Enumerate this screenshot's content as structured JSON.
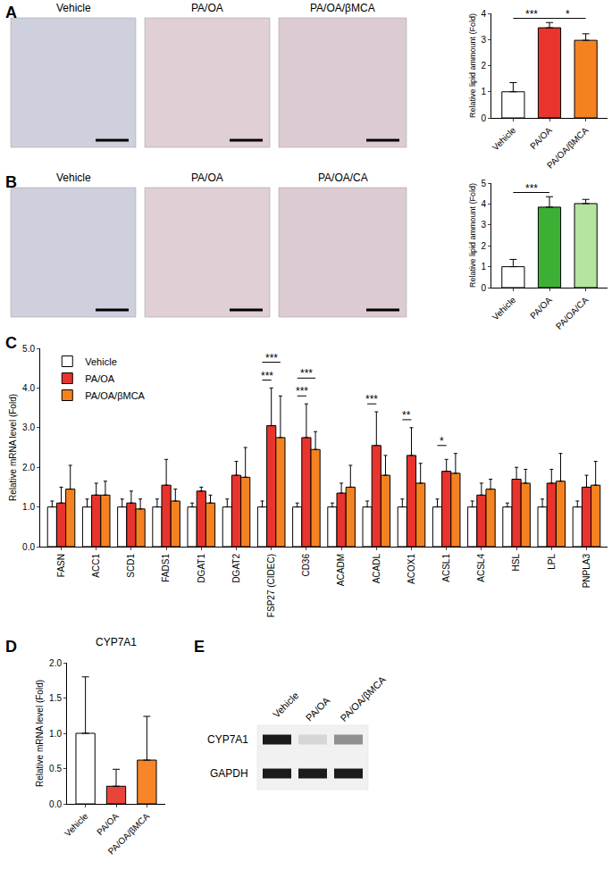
{
  "chart_data": [
    {
      "panel": "A",
      "type": "images",
      "labels": [
        "Vehicle",
        "PA/OA",
        "PA/OA/βMCA"
      ]
    },
    {
      "type": "bar",
      "categories": [
        "Vehicle",
        "PA/OA",
        "PA/OA/βMCA"
      ],
      "values": [
        1.0,
        3.45,
        2.97
      ],
      "errors": [
        0.35,
        0.2,
        0.25
      ],
      "colors": [
        "#ffffff",
        "#e8342c",
        "#f58220"
      ],
      "y_label": "Relative lipid ammount (Fold)",
      "ylim": [
        0,
        4
      ],
      "yticks": [
        0,
        1,
        2,
        3,
        4
      ],
      "significance": [
        {
          "from": "Vehicle",
          "to": "PA/OA",
          "text": "***"
        },
        {
          "from": "PA/OA",
          "to": "PA/OA/βMCA",
          "text": "*"
        }
      ]
    },
    {
      "panel": "B",
      "type": "images",
      "labels": [
        "Vehicle",
        "PA/OA",
        "PA/OA/CA"
      ]
    },
    {
      "type": "bar",
      "categories": [
        "Vehicle",
        "PA/OA",
        "PA/OA/CA"
      ],
      "values": [
        1.0,
        3.85,
        4.02
      ],
      "errors": [
        0.35,
        0.5,
        0.2
      ],
      "colors": [
        "#ffffff",
        "#3cb035",
        "#b5e3a0"
      ],
      "y_label": "Relative lipid ammount (Fold)",
      "ylim": [
        0,
        5
      ],
      "yticks": [
        0,
        1,
        2,
        3,
        4,
        5
      ],
      "significance": [
        {
          "from": "Vehicle",
          "to": "PA/OA",
          "text": "***"
        }
      ]
    },
    {
      "panel": "C",
      "type": "bar",
      "legend": "upper left",
      "categories": [
        "FASN",
        "ACC1",
        "SCD1",
        "FADS1",
        "DGAT1",
        "DGAT2",
        "FSP27 (CIDEC)",
        "CD36",
        "ACADM",
        "ACADL",
        "ACOX1",
        "ACSL1",
        "ACSL4",
        "HSL",
        "LPL",
        "PNPLA3"
      ],
      "series": [
        {
          "name": "Vehicle",
          "color": "#ffffff",
          "values": [
            1,
            1,
            1,
            1,
            1,
            1,
            1,
            1,
            1,
            1,
            1,
            1,
            1,
            1,
            1,
            1
          ],
          "errors": [
            0.15,
            0.2,
            0.2,
            0.2,
            0.1,
            0.2,
            0.15,
            0.1,
            0.1,
            0.15,
            0.2,
            0.2,
            0.15,
            0.1,
            0.2,
            0.15
          ]
        },
        {
          "name": "PA/OA",
          "color": "#e8342c",
          "values": [
            1.1,
            1.3,
            1.1,
            1.55,
            1.4,
            1.8,
            3.05,
            2.75,
            1.35,
            2.55,
            2.3,
            1.9,
            1.3,
            1.7,
            1.6,
            1.5
          ],
          "errors": [
            0.4,
            0.3,
            0.3,
            0.65,
            0.1,
            0.35,
            0.95,
            0.85,
            0.25,
            0.85,
            0.7,
            0.3,
            0.3,
            0.3,
            0.35,
            0.3
          ]
        },
        {
          "name": "PA/OA/βMCA",
          "color": "#f58220",
          "values": [
            1.45,
            1.3,
            0.95,
            1.15,
            1.1,
            1.75,
            2.75,
            2.45,
            1.5,
            1.8,
            1.6,
            1.85,
            1.45,
            1.6,
            1.65,
            1.55
          ],
          "errors": [
            0.6,
            0.35,
            0.25,
            0.3,
            0.2,
            0.75,
            1.05,
            0.45,
            0.55,
            0.5,
            0.5,
            0.5,
            0.25,
            0.35,
            0.7,
            0.6
          ]
        }
      ],
      "y_label": "Relative mRNA level (Fold)",
      "ylim": [
        0,
        5
      ],
      "yticks": [
        {
          "value": 0,
          "label": "0.0"
        },
        {
          "value": 1,
          "label": "1.0"
        },
        {
          "value": 2,
          "label": "2.0"
        },
        {
          "value": 3,
          "label": "3.0"
        },
        {
          "value": 4,
          "label": "4.0"
        },
        {
          "value": 5,
          "label": "5.0"
        }
      ],
      "significance": [
        {
          "category": "FSP27 (CIDEC)",
          "from": "Vehicle",
          "to": "PA/OA",
          "text": "***"
        },
        {
          "category": "FSP27 (CIDEC)",
          "from": "Vehicle",
          "to": "PA/OA/βMCA",
          "text": "***"
        },
        {
          "category": "CD36",
          "from": "Vehicle",
          "to": "PA/OA",
          "text": "***"
        },
        {
          "category": "CD36",
          "from": "Vehicle",
          "to": "PA/OA/βMCA",
          "text": "***"
        },
        {
          "category": "ACADL",
          "from": "Vehicle",
          "to": "PA/OA",
          "text": "***"
        },
        {
          "category": "ACOX1",
          "from": "Vehicle",
          "to": "PA/OA",
          "text": "**"
        },
        {
          "category": "ACSL1",
          "from": "Vehicle",
          "to": "PA/OA",
          "text": "*"
        }
      ]
    },
    {
      "panel": "D",
      "type": "bar",
      "title": "CYP7A1",
      "categories": [
        "Vehicle",
        "PA/OA",
        "PA/OA/βMCA"
      ],
      "values": [
        1.0,
        0.25,
        0.62
      ],
      "errors": [
        0.8,
        0.24,
        0.62
      ],
      "colors": [
        "#ffffff",
        "#e9443a",
        "#f7862a"
      ],
      "y_label": "Relative mRNA level (Fold)",
      "ylim": [
        0,
        2
      ],
      "yticks": [
        {
          "value": 0,
          "label": "0.0"
        },
        {
          "value": 0.5,
          "label": "0.5"
        },
        {
          "value": 1,
          "label": "1.0"
        },
        {
          "value": 1.5,
          "label": "1.5"
        },
        {
          "value": 2,
          "label": "2.0"
        }
      ]
    },
    {
      "panel": "E",
      "type": "blot",
      "lanes": [
        "Vehicle",
        "PA/OA",
        "PA/OA/βMCA"
      ],
      "bands": [
        {
          "name": "CYP7A1",
          "values": [
            1.0,
            0.12,
            0.45
          ]
        },
        {
          "name": "GAPDH",
          "values": [
            1.0,
            1.0,
            1.0
          ]
        }
      ]
    }
  ]
}
